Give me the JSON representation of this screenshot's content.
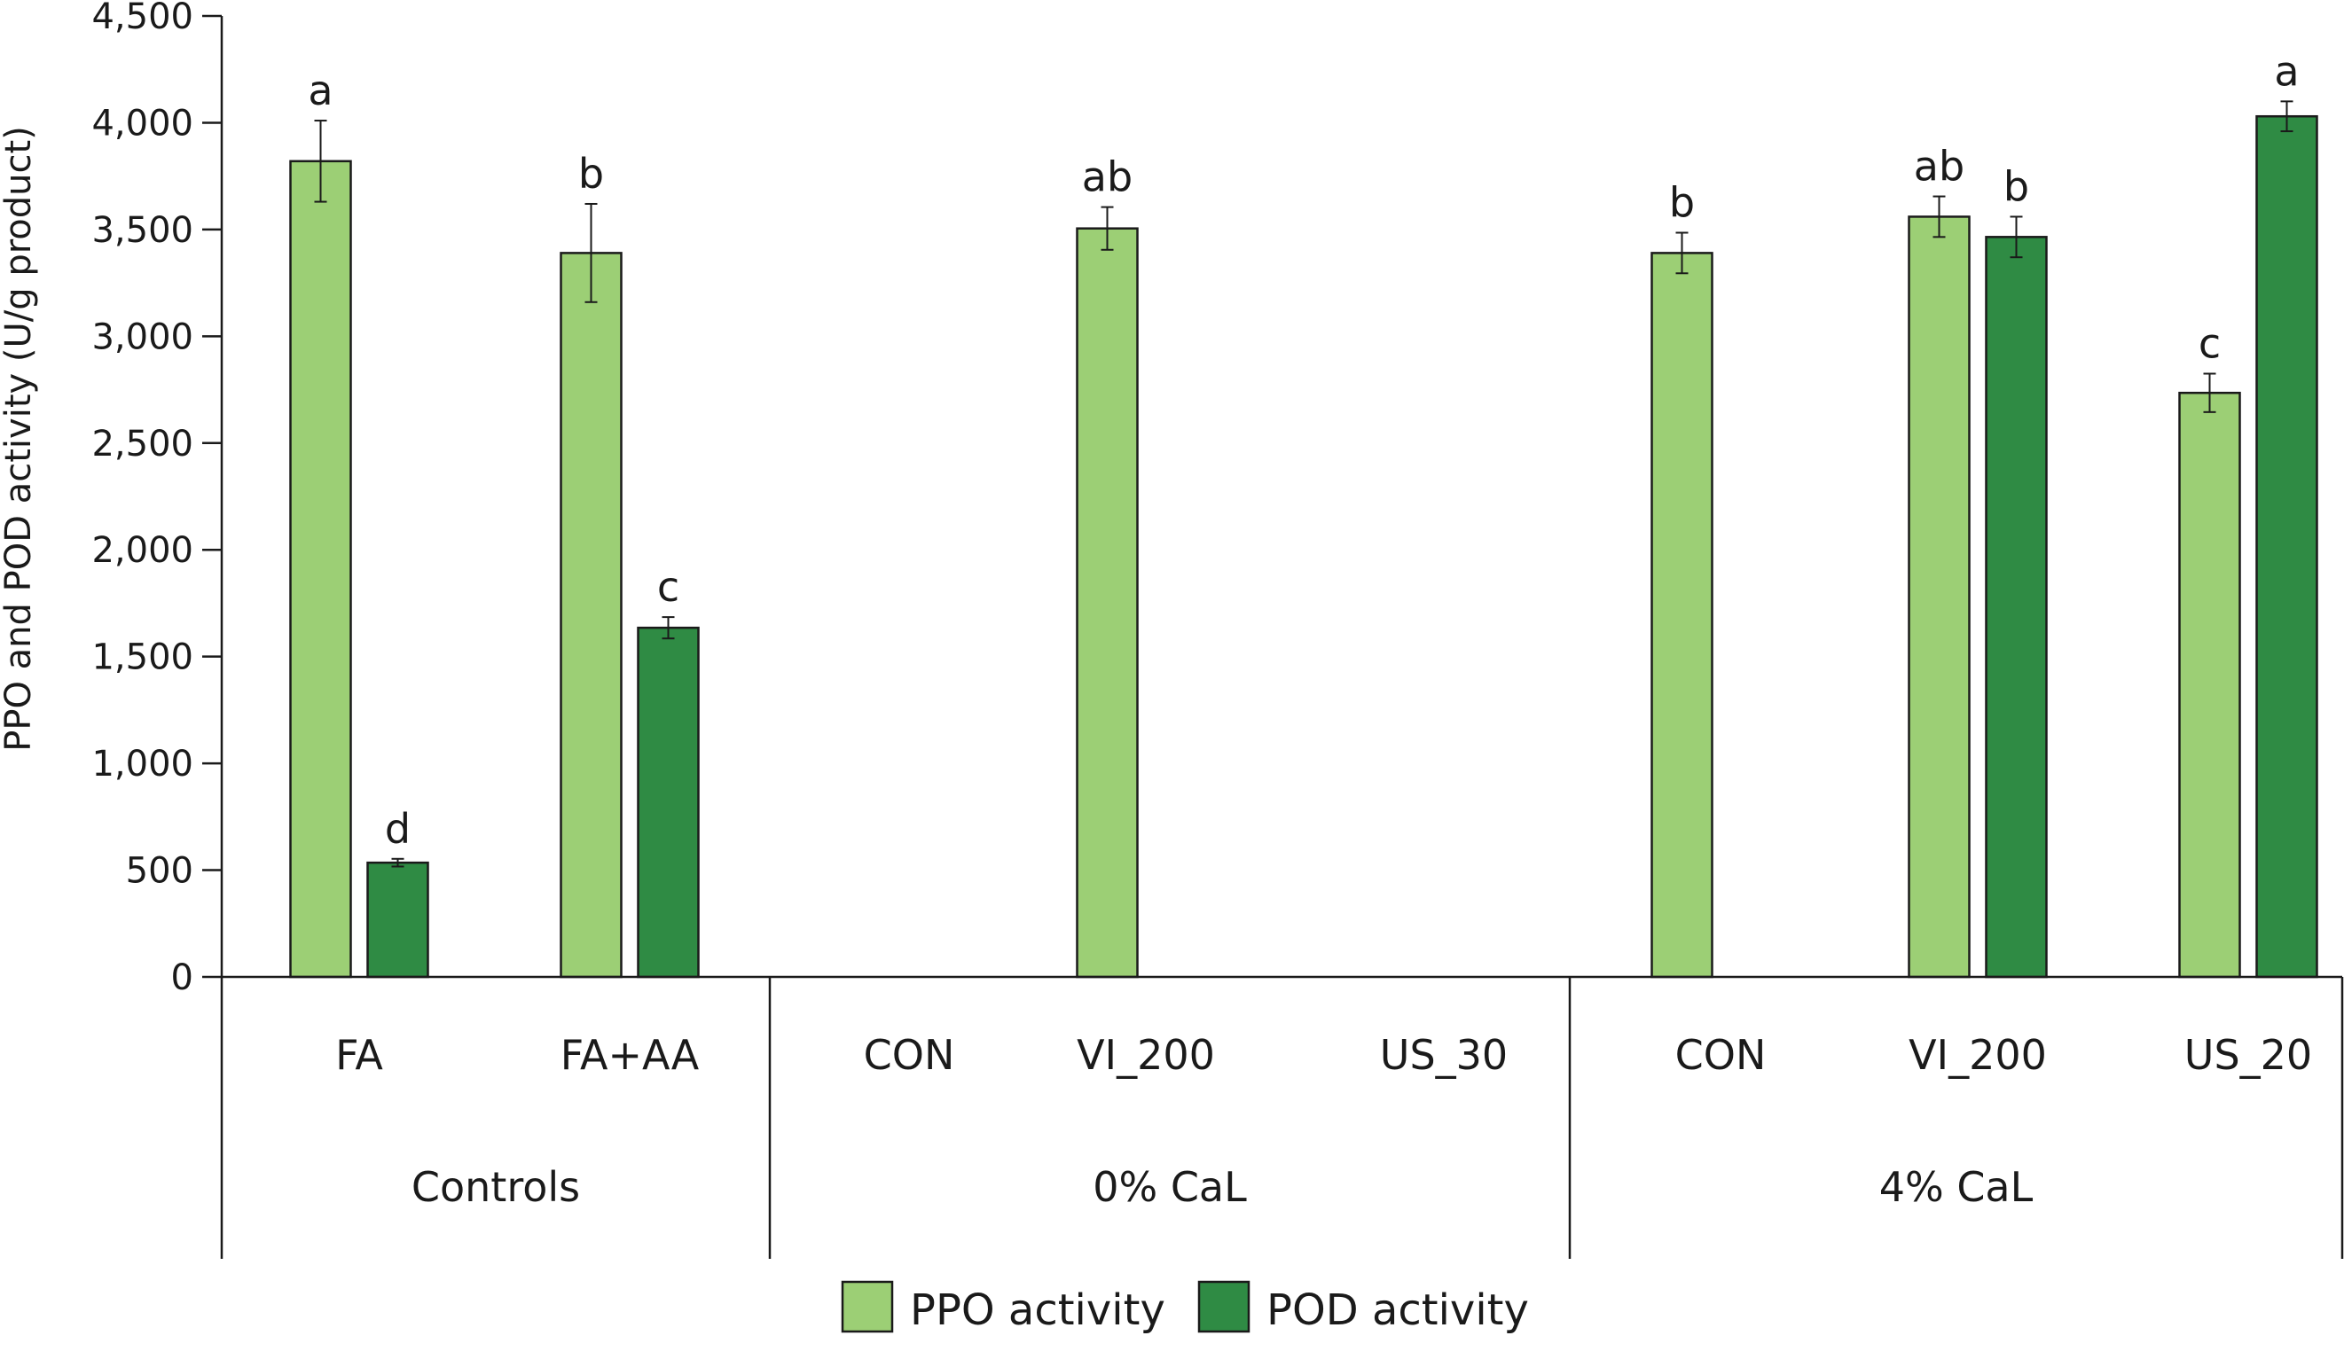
{
  "chart_data": {
    "type": "bar",
    "ylabel": "PPO and POD activity (U/g product)",
    "xlabel": "",
    "ylim": [
      0,
      4500
    ],
    "yticks": [
      0,
      500,
      1000,
      1500,
      2000,
      2500,
      3000,
      3500,
      4000,
      4500
    ],
    "ytick_labels": [
      "0",
      "500",
      "1,000",
      "1,500",
      "2,000",
      "2,500",
      "3,000",
      "3,500",
      "4,000",
      "4,500"
    ],
    "grid": false,
    "legend_position": "bottom",
    "groups": [
      {
        "label": "Controls",
        "categories": [
          "FA",
          "FA+AA"
        ]
      },
      {
        "label": "0% CaL",
        "categories": [
          "CON",
          "VI_200",
          "US_30"
        ]
      },
      {
        "label": "4% CaL",
        "categories": [
          "CON",
          "VI_200",
          "US_20"
        ]
      }
    ],
    "categories": [
      "FA",
      "FA+AA",
      "CON",
      "VI_200",
      "US_30",
      "CON",
      "VI_200",
      "US_20"
    ],
    "series": [
      {
        "name": "PPO activity",
        "color": "#9ccf75",
        "values": [
          3820,
          3390,
          null,
          3505,
          null,
          3390,
          3560,
          2735
        ],
        "errors": [
          190,
          230,
          null,
          100,
          null,
          95,
          95,
          90
        ],
        "letters": [
          "a",
          "b",
          "",
          "ab",
          "",
          "b",
          "ab",
          "c"
        ]
      },
      {
        "name": "POD activity",
        "color": "#2f8b44",
        "values": [
          535,
          1635,
          null,
          null,
          null,
          null,
          3465,
          4030
        ],
        "errors": [
          18,
          50,
          null,
          null,
          null,
          null,
          95,
          70
        ],
        "letters": [
          "d",
          "c",
          "",
          "",
          "",
          "",
          "b",
          "a"
        ]
      }
    ]
  }
}
